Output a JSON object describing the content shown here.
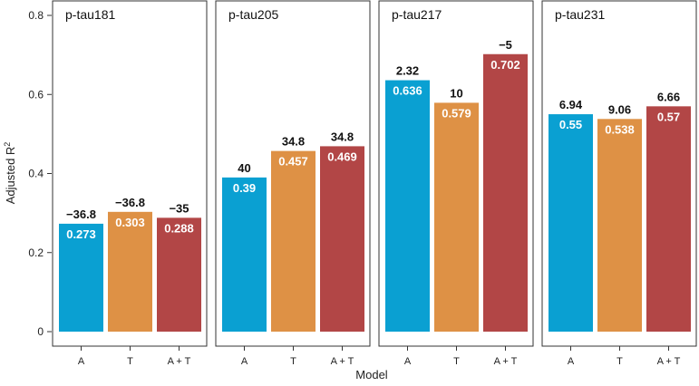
{
  "chart_data": {
    "type": "bar",
    "ylabel": "Adjusted R",
    "ylabel_superscript": "2",
    "xlabel": "Model",
    "ylim": [
      0,
      0.8
    ],
    "yticks": [
      0,
      0.2,
      0.4,
      0.6,
      0.8
    ],
    "ytick_labels": [
      "0",
      "0.2",
      "0.4",
      "0.6",
      "0.8"
    ],
    "categories": [
      "A",
      "T",
      "A + T"
    ],
    "colors": {
      "A": "#0aa0d2",
      "T": "#de9145",
      "A + T": "#b24646"
    },
    "panels": [
      {
        "title": "p-tau181",
        "values": [
          0.273,
          0.303,
          0.288
        ],
        "value_labels": [
          "0.273",
          "0.303",
          "0.288"
        ],
        "top_labels": [
          "−36.8",
          "−36.8",
          "−35"
        ]
      },
      {
        "title": "p-tau205",
        "values": [
          0.39,
          0.457,
          0.469
        ],
        "value_labels": [
          "0.39",
          "0.457",
          "0.469"
        ],
        "top_labels": [
          "40",
          "34.8",
          "34.8"
        ]
      },
      {
        "title": "p-tau217",
        "values": [
          0.636,
          0.579,
          0.702
        ],
        "value_labels": [
          "0.636",
          "0.579",
          "0.702"
        ],
        "top_labels": [
          "2.32",
          "10",
          "−5"
        ]
      },
      {
        "title": "p-tau231",
        "values": [
          0.55,
          0.538,
          0.57
        ],
        "value_labels": [
          "0.55",
          "0.538",
          "0.57"
        ],
        "top_labels": [
          "6.94",
          "9.06",
          "6.66"
        ]
      }
    ]
  }
}
